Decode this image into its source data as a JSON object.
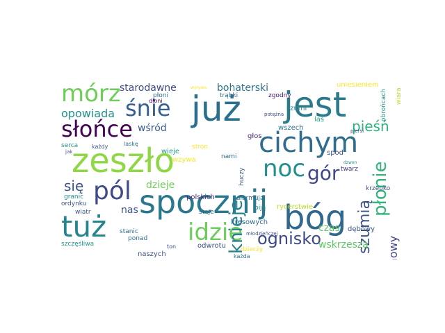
{
  "word_cloud": {
    "words": [
      {
        "text": "już",
        "color": "#2b6f8e"
      },
      {
        "text": "jest",
        "color": "#2b7a8c"
      },
      {
        "text": "zeszło",
        "color": "#8fd744"
      },
      {
        "text": "spocznij",
        "color": "#2a788e"
      },
      {
        "text": "bóg",
        "color": "#31688e"
      },
      {
        "text": "tuż",
        "color": "#25848e"
      },
      {
        "text": "cichym",
        "color": "#2f6c8e"
      },
      {
        "text": "mórz",
        "color": "#6ece58"
      },
      {
        "text": "śnie",
        "color": "#355f8d"
      },
      {
        "text": "słońce",
        "color": "#440154"
      },
      {
        "text": "pól",
        "color": "#3e4a89"
      },
      {
        "text": "noc",
        "color": "#218f8d"
      },
      {
        "text": "idzie",
        "color": "#6ccd5a"
      },
      {
        "text": "gór",
        "color": "#3f4788"
      },
      {
        "text": "kniejе",
        "color": "#26828e"
      },
      {
        "text": "płonie",
        "color": "#2fb47c"
      },
      {
        "text": "szumią",
        "color": "#3b528b"
      },
      {
        "text": "ognisko",
        "color": "#3e4989"
      },
      {
        "text": "pieśń",
        "color": "#2db27d"
      },
      {
        "text": "drużynowy",
        "color": "#404688"
      },
      {
        "text": "się",
        "color": "#3b528b"
      },
      {
        "text": "opowiada",
        "color": "#21918c"
      },
      {
        "text": "starodawne",
        "color": "#3e4a89"
      },
      {
        "text": "bohaterski",
        "color": "#2c728e"
      },
      {
        "text": "wśród",
        "color": "#365c8d"
      },
      {
        "text": "dzieje",
        "color": "#6ece58"
      },
      {
        "text": "wskrzesza",
        "color": "#5ec962"
      },
      {
        "text": "czas",
        "color": "#5ec962"
      },
      {
        "text": "nas",
        "color": "#3b528b"
      },
      {
        "text": "polskich",
        "color": "#482878"
      },
      {
        "text": "rycerstwie",
        "color": "#b8de29"
      },
      {
        "text": "kresowych",
        "color": "#31688e"
      },
      {
        "text": "szumi",
        "color": "#26828e"
      },
      {
        "text": "las",
        "color": "#20a386"
      },
      {
        "text": "głos",
        "color": "#472d7b"
      },
      {
        "text": "wszech",
        "color": "#2a788e"
      },
      {
        "text": "uniesieniem",
        "color": "#fde725"
      },
      {
        "text": "płoni",
        "color": "#31688e"
      },
      {
        "text": "trąbki",
        "color": "#306a8e"
      },
      {
        "text": "zgodny",
        "color": "#471365"
      },
      {
        "text": "dłoni",
        "color": "#440154"
      },
      {
        "text": "wieje",
        "color": "#20a386"
      },
      {
        "text": "stron",
        "color": "#fde725"
      },
      {
        "text": "nami",
        "color": "#2c728e"
      },
      {
        "text": "huczy",
        "color": "#38598c"
      },
      {
        "text": "spod",
        "color": "#39568c"
      },
      {
        "text": "twarz",
        "color": "#46327e"
      },
      {
        "text": "krzepko",
        "color": "#3b528b"
      },
      {
        "text": "dębowy",
        "color": "#3b528b"
      },
      {
        "text": "alarmują",
        "color": "#2c728e"
      },
      {
        "text": "biją",
        "color": "#26828e"
      },
      {
        "text": "staje",
        "color": "#2c728e"
      },
      {
        "text": "dzierży",
        "color": "#fde725"
      },
      {
        "text": "każda",
        "color": "#2c728e"
      },
      {
        "text": "odwrotu",
        "color": "#3b528b"
      },
      {
        "text": "naszych",
        "color": "#3b528b"
      },
      {
        "text": "ponad",
        "color": "#2c728e"
      },
      {
        "text": "ton",
        "color": "#3b528b"
      },
      {
        "text": "stanic",
        "color": "#2c728e"
      },
      {
        "text": "wiatr",
        "color": "#3b528b"
      },
      {
        "text": "ordynku",
        "color": "#3b528b"
      },
      {
        "text": "granic",
        "color": "#21918c"
      },
      {
        "text": "wzywa",
        "color": "#fde725"
      },
      {
        "text": "laskę",
        "color": "#2c728e"
      },
      {
        "text": "każdy",
        "color": "#3b528b"
      },
      {
        "text": "serca",
        "color": "#21918c"
      },
      {
        "text": "jak",
        "color": "#3b528b"
      },
      {
        "text": "szczęśliwa",
        "color": "#21918c"
      },
      {
        "text": "młodzieńczej",
        "color": "#3b528b"
      },
      {
        "text": "dzwon",
        "color": "#21918c"
      },
      {
        "text": "obrońcach",
        "color": "#21918c"
      },
      {
        "text": "wiara",
        "color": "#b5de2b"
      },
      {
        "text": "piersi",
        "color": "#3b528b"
      },
      {
        "text": "potężna",
        "color": "#3b528b"
      },
      {
        "text": "wyrywa",
        "color": "#fde725"
      }
    ]
  }
}
